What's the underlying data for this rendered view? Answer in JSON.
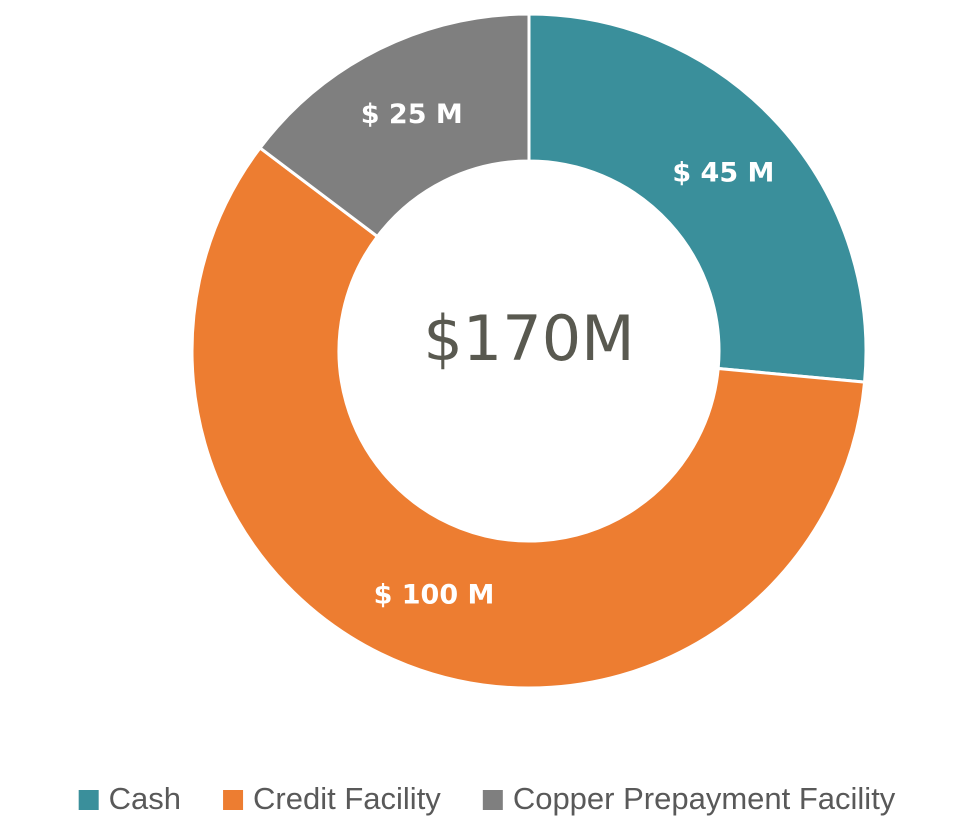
{
  "chart_data": {
    "type": "donut",
    "center_label": "$170M",
    "categories": [
      "Cash",
      "Credit Facility",
      "Copper Prepayment Facility"
    ],
    "values": [
      45,
      100,
      25
    ],
    "value_labels": [
      "$ 45 M",
      "$ 100 M",
      "$ 25 M"
    ],
    "colors": [
      "#3a8f9b",
      "#ed7d31",
      "#7f7f7f"
    ],
    "legend": "bottom"
  }
}
